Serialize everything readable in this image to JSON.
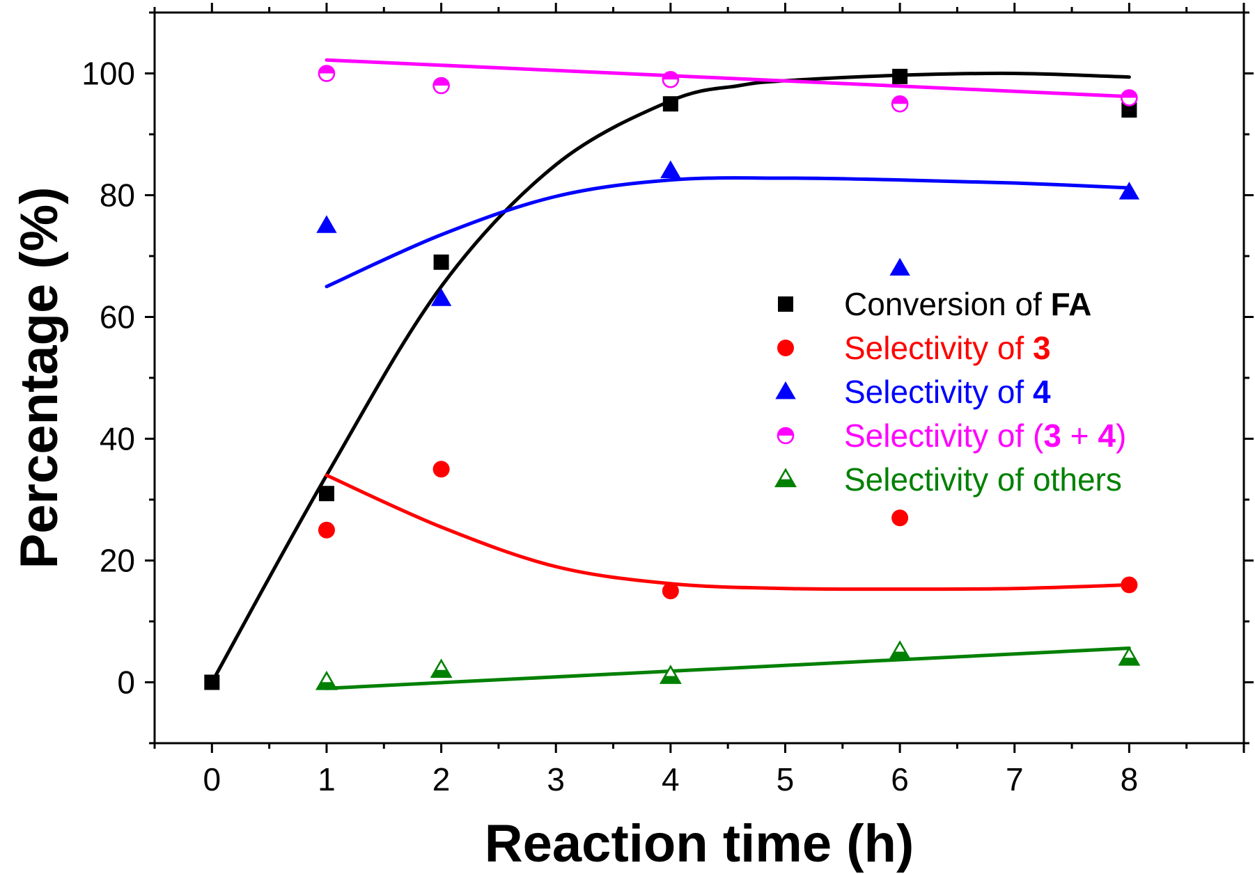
{
  "chart_data": {
    "type": "scatter",
    "xlabel": "Reaction time (h)",
    "ylabel": "Percentage (%)",
    "xlim": [
      -0.5,
      9
    ],
    "ylim": [
      -10,
      110
    ],
    "xticks": [
      0,
      1,
      2,
      3,
      4,
      5,
      6,
      7,
      8
    ],
    "yticks": [
      0,
      20,
      40,
      60,
      80,
      100
    ],
    "grid": false,
    "legend_position": "right",
    "series": [
      {
        "name": "Conversion of FA",
        "legend": [
          {
            "text": "Conversion of ",
            "bold": false
          },
          {
            "text": "FA",
            "bold": true
          }
        ],
        "color": "#000000",
        "marker": "square",
        "x": [
          0,
          1,
          2,
          4,
          6,
          8
        ],
        "y": [
          0,
          31,
          69,
          95,
          99.5,
          94
        ],
        "fit": {
          "x": [
            0,
            1,
            2,
            3,
            4,
            4.6,
            5,
            6,
            7,
            8
          ],
          "y": [
            0,
            34,
            65,
            85,
            95.5,
            98,
            98.8,
            99.7,
            100,
            99.4
          ]
        }
      },
      {
        "name": "Selectivity of 3",
        "legend": [
          {
            "text": "Selectivity of ",
            "bold": false
          },
          {
            "text": "3",
            "bold": true
          }
        ],
        "color": "#ff0000",
        "marker": "circle",
        "x": [
          1,
          2,
          4,
          6,
          8
        ],
        "y": [
          25,
          35,
          15,
          27,
          16
        ],
        "fit": {
          "x": [
            1,
            2,
            3,
            4,
            5,
            6,
            7,
            8
          ],
          "y": [
            34,
            25.5,
            19,
            16.2,
            15.4,
            15.3,
            15.4,
            16
          ]
        }
      },
      {
        "name": "Selectivity of 4",
        "legend": [
          {
            "text": "Selectivity of ",
            "bold": false
          },
          {
            "text": "4",
            "bold": true
          }
        ],
        "color": "#0000ff",
        "marker": "triangle",
        "x": [
          1,
          2,
          4,
          6,
          8
        ],
        "y": [
          75,
          63,
          84,
          68,
          80.5
        ],
        "fit": {
          "x": [
            1,
            2,
            3,
            4,
            5,
            6,
            7,
            8
          ],
          "y": [
            65,
            73.5,
            79.8,
            82.5,
            82.8,
            82.5,
            82,
            81.2
          ]
        }
      },
      {
        "name": "Selectivity of (3 + 4)",
        "legend": [
          {
            "text": "Selectivity of (",
            "bold": false
          },
          {
            "text": "3",
            "bold": true
          },
          {
            "text": " + ",
            "bold": false
          },
          {
            "text": "4",
            "bold": true
          },
          {
            "text": ")",
            "bold": false
          }
        ],
        "color": "#ff00ff",
        "marker": "half-circle",
        "x": [
          1,
          2,
          4,
          6,
          8
        ],
        "y": [
          100,
          98,
          99,
          95,
          96
        ],
        "fit": {
          "x": [
            1,
            8
          ],
          "y": [
            102.2,
            96.2
          ]
        }
      },
      {
        "name": "Selectivity of others",
        "legend": [
          {
            "text": "Selectivity of others",
            "bold": false
          }
        ],
        "color": "#008000",
        "marker": "half-triangle",
        "x": [
          1,
          2,
          4,
          6,
          8
        ],
        "y": [
          0,
          2,
          1,
          5,
          4
        ],
        "fit": {
          "x": [
            1,
            8
          ],
          "y": [
            -1,
            5.6
          ]
        }
      }
    ]
  }
}
